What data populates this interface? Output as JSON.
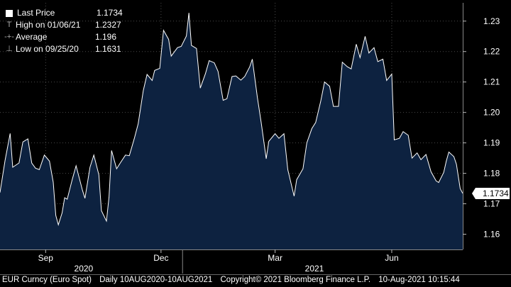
{
  "chart_data": {
    "type": "area",
    "series_name": "Last Price",
    "last_value": 1.1734,
    "last_value_label": "1.1734",
    "ylim": [
      1.155,
      1.236
    ],
    "y_ticks": [
      {
        "value": 1.16,
        "label": "1.16"
      },
      {
        "value": 1.17,
        "label": "1.17"
      },
      {
        "value": 1.18,
        "label": "1.18"
      },
      {
        "value": 1.19,
        "label": "1.19"
      },
      {
        "value": 1.2,
        "label": "1.20"
      },
      {
        "value": 1.21,
        "label": "1.21"
      },
      {
        "value": 1.22,
        "label": "1.22"
      },
      {
        "value": 1.23,
        "label": "1.23"
      }
    ],
    "x_months": [
      {
        "date": "2020-09-15",
        "label": "Sep"
      },
      {
        "date": "2020-12-15",
        "label": "Dec"
      },
      {
        "date": "2021-03-15",
        "label": "Mar"
      },
      {
        "date": "2021-06-15",
        "label": "Jun"
      }
    ],
    "x_years": [
      {
        "date": "2020-10-15",
        "label": "2020"
      },
      {
        "date": "2021-04-15",
        "label": "2021"
      }
    ],
    "year_boundary": "2021-01-01",
    "x_range": [
      "2020-08-10",
      "2021-08-10"
    ],
    "grid": true,
    "points": [
      [
        "2020-08-10",
        1.1737
      ],
      [
        "2020-08-14",
        1.1842
      ],
      [
        "2020-08-18",
        1.1931
      ],
      [
        "2020-08-20",
        1.182
      ],
      [
        "2020-08-25",
        1.1834
      ],
      [
        "2020-08-28",
        1.1903
      ],
      [
        "2020-09-01",
        1.1913
      ],
      [
        "2020-09-04",
        1.1834
      ],
      [
        "2020-09-07",
        1.1817
      ],
      [
        "2020-09-10",
        1.1812
      ],
      [
        "2020-09-14",
        1.186
      ],
      [
        "2020-09-18",
        1.184
      ],
      [
        "2020-09-21",
        1.1771
      ],
      [
        "2020-09-23",
        1.1662
      ],
      [
        "2020-09-25",
        1.1631
      ],
      [
        "2020-09-28",
        1.167
      ],
      [
        "2020-09-30",
        1.172
      ],
      [
        "2020-10-02",
        1.1715
      ],
      [
        "2020-10-06",
        1.178
      ],
      [
        "2020-10-09",
        1.1825
      ],
      [
        "2020-10-14",
        1.1745
      ],
      [
        "2020-10-16",
        1.1718
      ],
      [
        "2020-10-20",
        1.182
      ],
      [
        "2020-10-23",
        1.186
      ],
      [
        "2020-10-27",
        1.1795
      ],
      [
        "2020-10-29",
        1.1677
      ],
      [
        "2020-11-02",
        1.1643
      ],
      [
        "2020-11-04",
        1.1722
      ],
      [
        "2020-11-06",
        1.1875
      ],
      [
        "2020-11-10",
        1.1815
      ],
      [
        "2020-11-13",
        1.1835
      ],
      [
        "2020-11-17",
        1.186
      ],
      [
        "2020-11-20",
        1.1858
      ],
      [
        "2020-11-24",
        1.1915
      ],
      [
        "2020-11-27",
        1.1963
      ],
      [
        "2020-12-01",
        1.2072
      ],
      [
        "2020-12-04",
        1.2125
      ],
      [
        "2020-12-08",
        1.2105
      ],
      [
        "2020-12-10",
        1.2138
      ],
      [
        "2020-12-14",
        1.2145
      ],
      [
        "2020-12-17",
        1.227
      ],
      [
        "2020-12-21",
        1.224
      ],
      [
        "2020-12-23",
        1.2185
      ],
      [
        "2020-12-28",
        1.2213
      ],
      [
        "2020-12-31",
        1.2217
      ],
      [
        "2021-01-04",
        1.2251
      ],
      [
        "2021-01-06",
        1.2327
      ],
      [
        "2021-01-08",
        1.222
      ],
      [
        "2021-01-12",
        1.221
      ],
      [
        "2021-01-15",
        1.208
      ],
      [
        "2021-01-19",
        1.2127
      ],
      [
        "2021-01-22",
        1.217
      ],
      [
        "2021-01-26",
        1.2163
      ],
      [
        "2021-01-29",
        1.2135
      ],
      [
        "2021-02-02",
        1.204
      ],
      [
        "2021-02-05",
        1.2045
      ],
      [
        "2021-02-09",
        1.2118
      ],
      [
        "2021-02-12",
        1.212
      ],
      [
        "2021-02-16",
        1.2106
      ],
      [
        "2021-02-19",
        1.2118
      ],
      [
        "2021-02-23",
        1.215
      ],
      [
        "2021-02-25",
        1.2175
      ],
      [
        "2021-03-01",
        1.205
      ],
      [
        "2021-03-04",
        1.1967
      ],
      [
        "2021-03-08",
        1.1848
      ],
      [
        "2021-03-10",
        1.1905
      ],
      [
        "2021-03-15",
        1.193
      ],
      [
        "2021-03-18",
        1.1915
      ],
      [
        "2021-03-22",
        1.193
      ],
      [
        "2021-03-25",
        1.1812
      ],
      [
        "2021-03-30",
        1.1725
      ],
      [
        "2021-04-01",
        1.1779
      ],
      [
        "2021-04-06",
        1.1815
      ],
      [
        "2021-04-09",
        1.19
      ],
      [
        "2021-04-13",
        1.1947
      ],
      [
        "2021-04-16",
        1.1967
      ],
      [
        "2021-04-20",
        1.2037
      ],
      [
        "2021-04-23",
        1.21
      ],
      [
        "2021-04-27",
        1.2086
      ],
      [
        "2021-04-30",
        1.202
      ],
      [
        "2021-05-04",
        1.202
      ],
      [
        "2021-05-07",
        1.2165
      ],
      [
        "2021-05-11",
        1.215
      ],
      [
        "2021-05-14",
        1.2143
      ],
      [
        "2021-05-18",
        1.2224
      ],
      [
        "2021-05-21",
        1.218
      ],
      [
        "2021-05-25",
        1.225
      ],
      [
        "2021-05-28",
        1.2195
      ],
      [
        "2021-06-01",
        1.2213
      ],
      [
        "2021-06-04",
        1.2167
      ],
      [
        "2021-06-08",
        1.2175
      ],
      [
        "2021-06-11",
        1.2105
      ],
      [
        "2021-06-15",
        1.2126
      ],
      [
        "2021-06-17",
        1.191
      ],
      [
        "2021-06-21",
        1.1915
      ],
      [
        "2021-06-24",
        1.1937
      ],
      [
        "2021-06-28",
        1.1925
      ],
      [
        "2021-07-01",
        1.185
      ],
      [
        "2021-07-05",
        1.1867
      ],
      [
        "2021-07-08",
        1.1845
      ],
      [
        "2021-07-12",
        1.1862
      ],
      [
        "2021-07-16",
        1.1805
      ],
      [
        "2021-07-20",
        1.1775
      ],
      [
        "2021-07-22",
        1.177
      ],
      [
        "2021-07-26",
        1.1803
      ],
      [
        "2021-07-28",
        1.184
      ],
      [
        "2021-07-30",
        1.187
      ],
      [
        "2021-08-03",
        1.1855
      ],
      [
        "2021-08-05",
        1.183
      ],
      [
        "2021-08-08",
        1.175
      ],
      [
        "2021-08-10",
        1.1734
      ]
    ]
  },
  "legend": [
    {
      "marker": "box",
      "label": "Last Price",
      "value": "1.1734"
    },
    {
      "marker": "T",
      "label": "High on 01/06/21",
      "value": "1.2327"
    },
    {
      "marker": "-+-",
      "label": "Average",
      "value": "1.196"
    },
    {
      "marker": "⊥",
      "label": "Low on 09/25/20",
      "value": "1.1631"
    }
  ],
  "footer": {
    "ticker": "EUR Curncy (Euro Spot)",
    "range": "Daily 10AUG2020-10AUG2021",
    "copyright": "Copyright© 2021 Bloomberg Finance L.P.",
    "timestamp": "10-Aug-2021 10:15:44"
  },
  "colors": {
    "background": "#000000",
    "area_fill": "#0d2240",
    "line": "#ffffff",
    "grid": "#4a4a4a",
    "last_label_bg": "#ffffff",
    "last_label_text": "#000000"
  }
}
